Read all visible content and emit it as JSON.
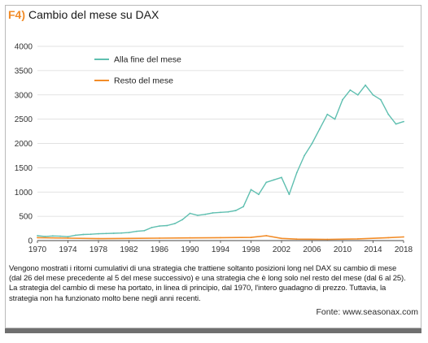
{
  "header": {
    "tag": "F4)",
    "title": "Cambio del mese su DAX"
  },
  "caption": "Vengono mostrati i ritorni cumulativi di una strategia che trattiene soltanto posizioni long nel DAX su cambio di mese (dal 26 del mese precedente al 5 del mese successivo) e una strategia che è long solo nel resto del mese (dal 6 al 25). La strategia del cambio di mese ha portato, in linea di principio, dal 1970, l'intero guadagno di prezzo. Tuttavia, la strategia non ha funzionato molto bene negli anni recenti.",
  "source": "Fonte: www.seasonax.com",
  "colors": {
    "teal": "#5fbfb0",
    "orange": "#f28c28",
    "grid": "#d9d9d9",
    "axis": "#444444"
  },
  "chart_data": {
    "type": "line",
    "title": "Cambio del mese su DAX",
    "xlabel": "",
    "ylabel": "",
    "xlim": [
      1970,
      2018
    ],
    "ylim": [
      0,
      4000
    ],
    "x_ticks": [
      "1970",
      "1974",
      "1978",
      "1982",
      "1986",
      "1990",
      "1994",
      "1998",
      "2002",
      "2006",
      "2010",
      "2014",
      "2018"
    ],
    "y_ticks": [
      "0",
      "500",
      "1000",
      "1500",
      "2000",
      "2500",
      "3000",
      "3500",
      "4000"
    ],
    "grid": "horizontal",
    "legend_position": "top-left",
    "series": [
      {
        "name": "Alla fine del mese",
        "color": "#5fbfb0",
        "x": [
          1970,
          1971,
          1972,
          1973,
          1974,
          1975,
          1976,
          1977,
          1978,
          1979,
          1980,
          1981,
          1982,
          1983,
          1984,
          1985,
          1986,
          1987,
          1988,
          1989,
          1990,
          1991,
          1992,
          1993,
          1994,
          1995,
          1996,
          1997,
          1998,
          1999,
          2000,
          2001,
          2002,
          2003,
          2004,
          2005,
          2006,
          2007,
          2008,
          2009,
          2010,
          2011,
          2012,
          2013,
          2014,
          2015,
          2016,
          2017,
          2018
        ],
        "values": [
          100,
          85,
          95,
          90,
          80,
          110,
          125,
          130,
          140,
          145,
          150,
          155,
          165,
          190,
          205,
          270,
          300,
          310,
          350,
          430,
          560,
          520,
          540,
          570,
          580,
          590,
          620,
          700,
          1050,
          950,
          1200,
          1250,
          1300,
          950,
          1400,
          1750,
          2000,
          2300,
          2600,
          2500,
          2900,
          3100,
          3000,
          3200,
          3000,
          2900,
          2600,
          2400,
          2450
        ]
      },
      {
        "name": "Resto del mese",
        "color": "#f28c28",
        "x": [
          1970,
          1974,
          1978,
          1982,
          1986,
          1990,
          1994,
          1998,
          2000,
          2002,
          2004,
          2008,
          2012,
          2016,
          2018
        ],
        "values": [
          60,
          50,
          40,
          45,
          50,
          55,
          60,
          65,
          100,
          45,
          30,
          25,
          35,
          60,
          75
        ]
      }
    ]
  }
}
